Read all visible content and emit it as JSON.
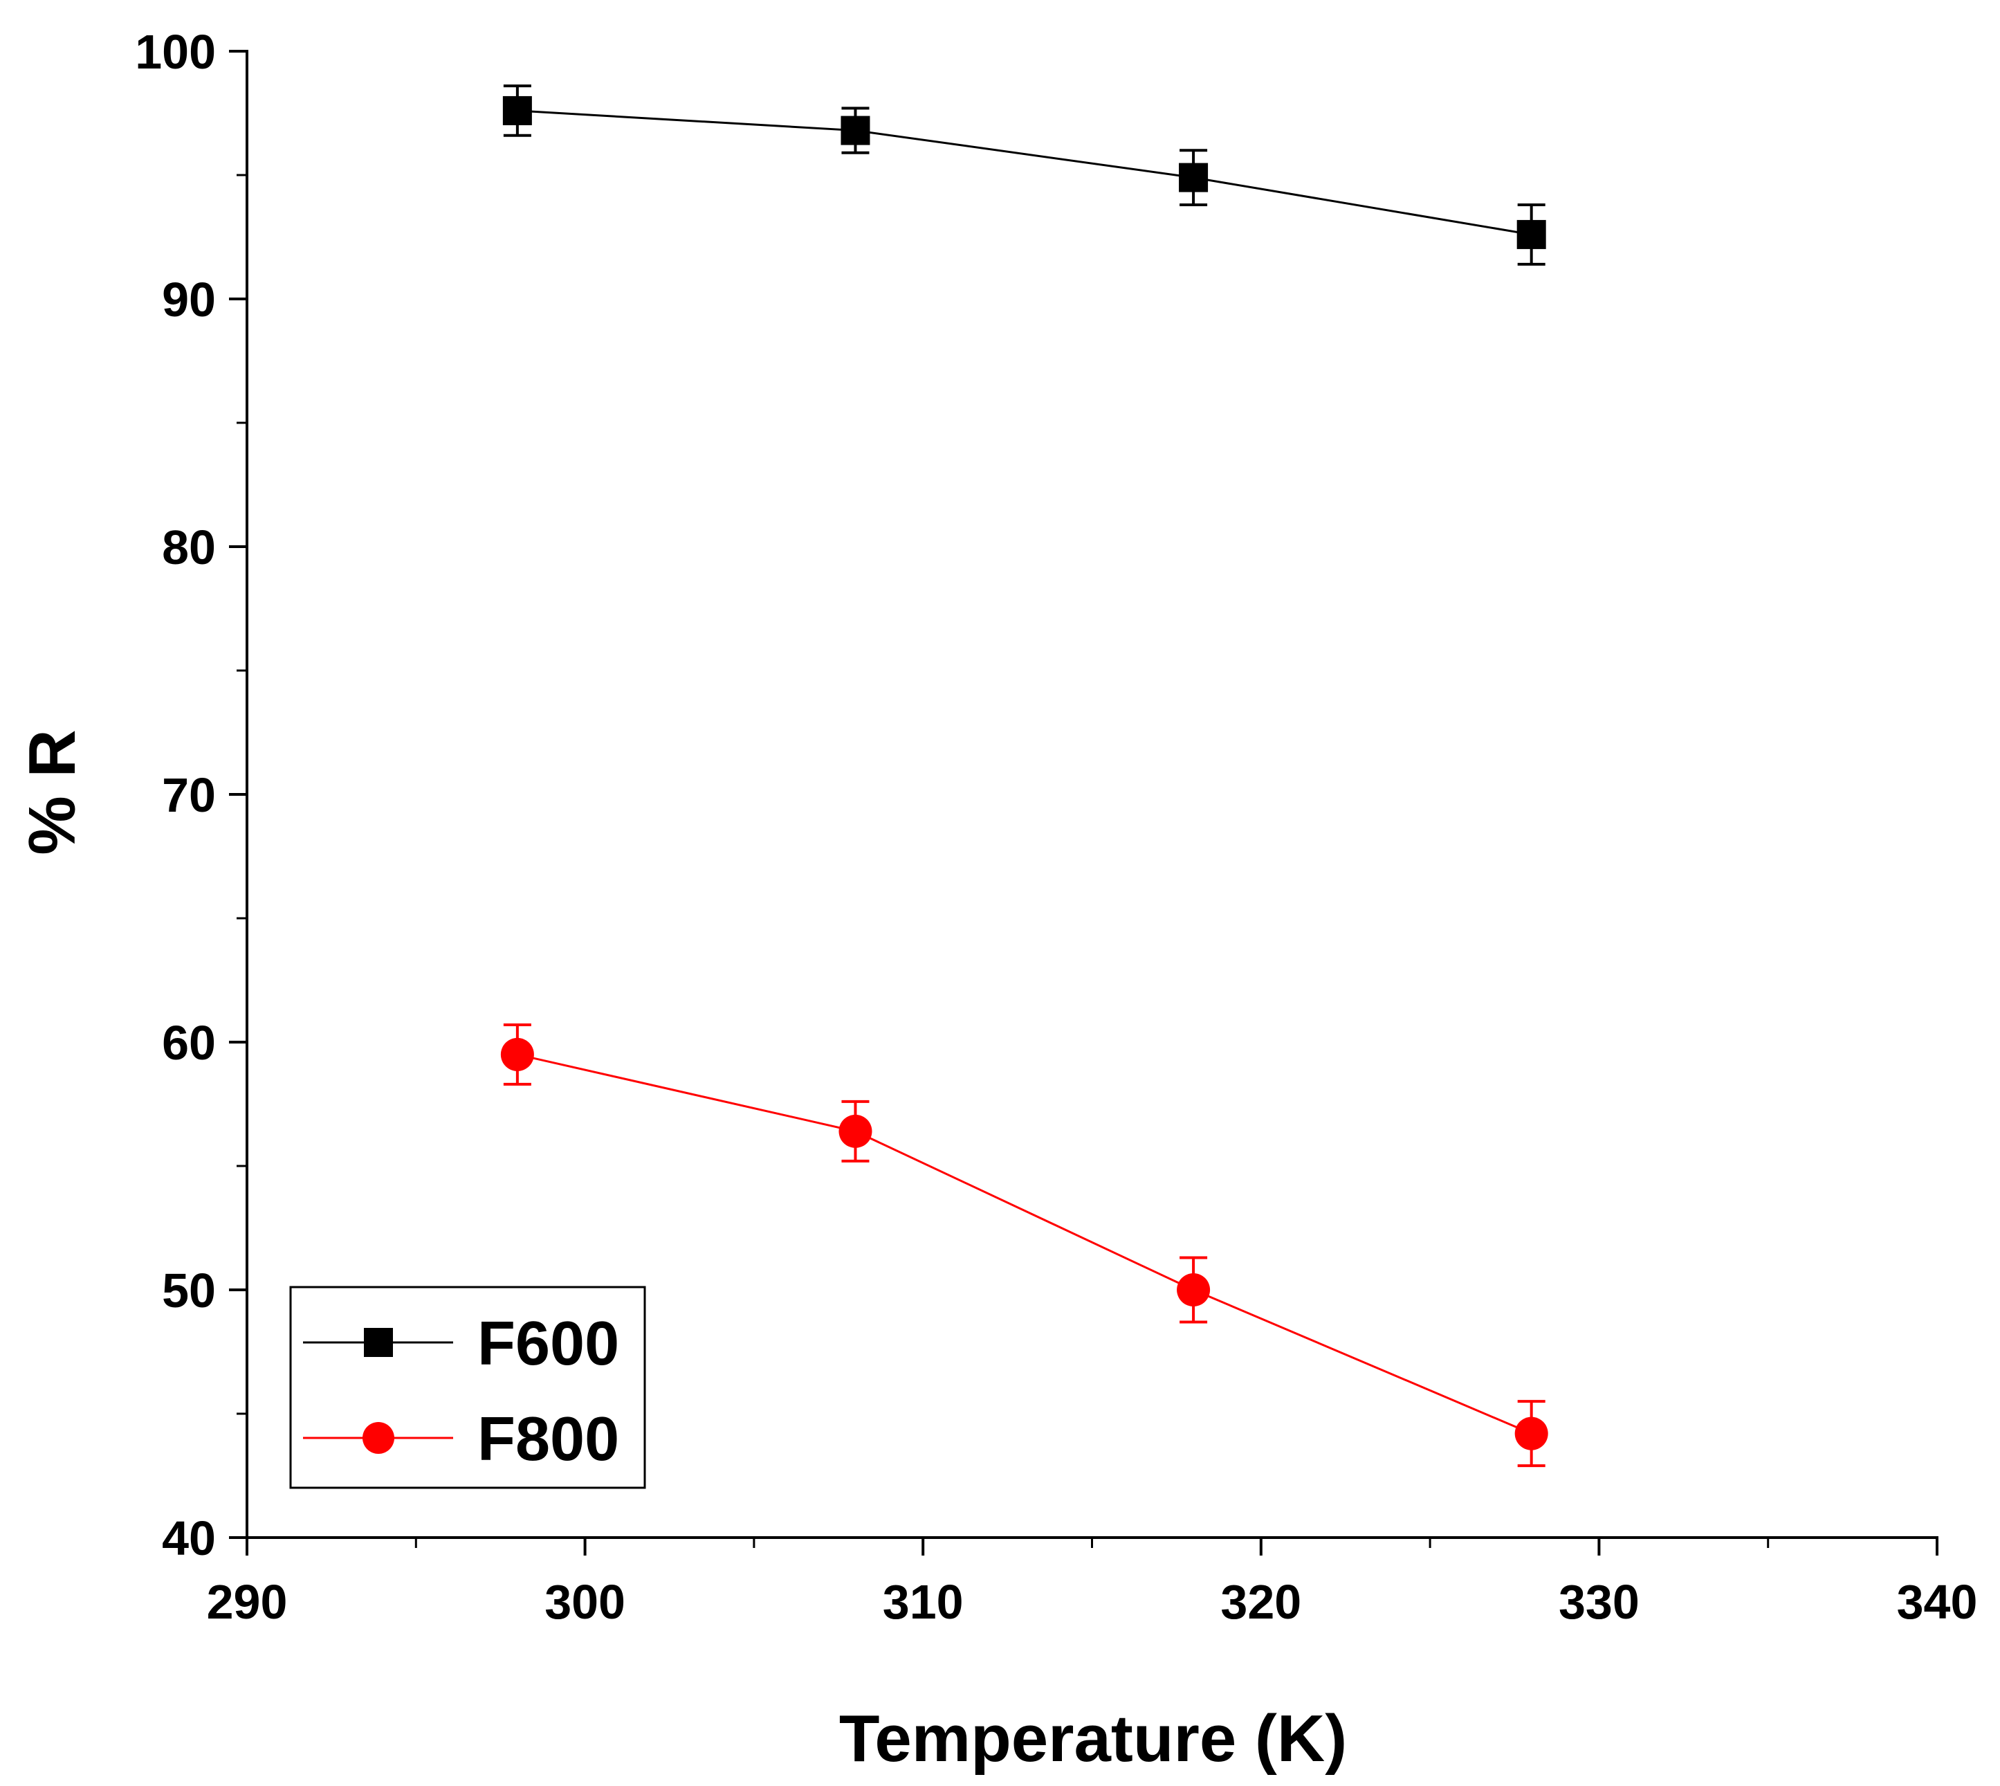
{
  "chart_data": {
    "type": "line",
    "title": "",
    "xlabel": "Temperature (K)",
    "ylabel": "% R",
    "xlim": [
      290,
      340
    ],
    "ylim": [
      40,
      100
    ],
    "x_ticks": [
      290,
      300,
      310,
      320,
      330,
      340
    ],
    "y_ticks": [
      40,
      50,
      60,
      70,
      80,
      90,
      100
    ],
    "x_minor_step": 5,
    "y_minor_step": 5,
    "grid": false,
    "legend_position": "bottom-left",
    "series": [
      {
        "name": "F600",
        "marker": "square",
        "color": "#000000",
        "x": [
          298,
          308,
          318,
          328
        ],
        "values": [
          97.6,
          96.8,
          94.9,
          92.6
        ],
        "errors": [
          1.0,
          0.9,
          1.1,
          1.2
        ]
      },
      {
        "name": "F800",
        "marker": "circle",
        "color": "#ff0000",
        "x": [
          298,
          308,
          318,
          328
        ],
        "values": [
          59.5,
          56.4,
          50.0,
          44.2
        ],
        "errors": [
          1.2,
          1.2,
          1.3,
          1.3
        ]
      }
    ]
  }
}
